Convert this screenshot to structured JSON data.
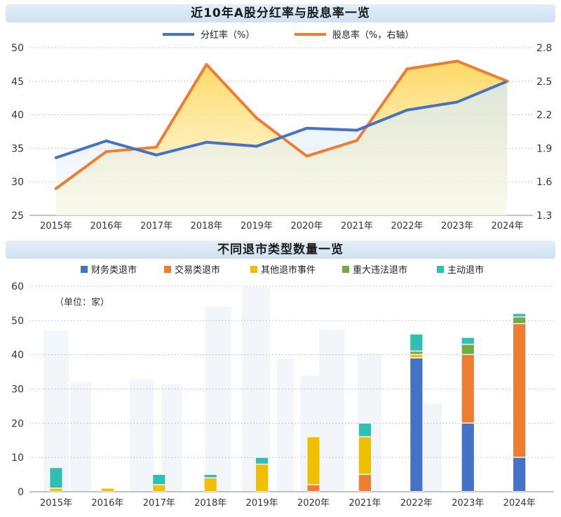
{
  "chart_data": [
    {
      "type": "line",
      "title": "近10年A股分红率与股息率一览",
      "categories": [
        "2015年",
        "2016年",
        "2017年",
        "2018年",
        "2019年",
        "2020年",
        "2021年",
        "2022年",
        "2023年",
        "2024年"
      ],
      "series": [
        {
          "name": "分红率（%）",
          "axis": "left",
          "color": "#4472c4",
          "values": [
            33.6,
            36.1,
            34.0,
            35.9,
            35.3,
            38.0,
            37.7,
            40.7,
            41.9,
            45.0
          ]
        },
        {
          "name": "股息率（%，右轴）",
          "axis": "right",
          "color": "#ed7d31",
          "values": [
            1.54,
            1.87,
            1.91,
            2.65,
            2.17,
            1.83,
            1.97,
            2.61,
            2.68,
            2.5
          ]
        }
      ],
      "ylim": [
        25,
        50
      ],
      "yticks": [
        "25",
        "30",
        "35",
        "40",
        "45",
        "50"
      ],
      "y2lim": [
        1.3,
        2.8
      ],
      "y2ticks": [
        "1.3",
        "1.6",
        "1.9",
        "2.2",
        "2.5",
        "2.8"
      ],
      "legend": "top-center",
      "grid": "horizontal-dotted"
    },
    {
      "type": "bar",
      "stacked": true,
      "title": "不同退市类型数量一览",
      "unit_note": "（单位：家）",
      "categories": [
        "2015年",
        "2016年",
        "2017年",
        "2018年",
        "2019年",
        "2020年",
        "2021年",
        "2022年",
        "2023年",
        "2024年"
      ],
      "series": [
        {
          "name": "财务类退市",
          "color": "#4472c4",
          "values": [
            0,
            0,
            0,
            0,
            0,
            0,
            0,
            39,
            20,
            10
          ]
        },
        {
          "name": "交易类退市",
          "color": "#ed7d31",
          "values": [
            0,
            0,
            0,
            0,
            0,
            2,
            5,
            0,
            20,
            39
          ]
        },
        {
          "name": "其他退市事件",
          "color": "#f0bf00",
          "values": [
            1,
            1,
            2,
            4,
            8,
            14,
            11,
            1,
            0,
            0
          ]
        },
        {
          "name": "重大违法退市",
          "color": "#70ad47",
          "values": [
            0,
            0,
            0,
            0,
            0,
            0,
            0,
            1,
            3,
            2
          ]
        },
        {
          "name": "主动退市",
          "color": "#2fbfb5",
          "values": [
            6,
            0,
            3,
            1,
            2,
            0,
            4,
            5,
            2,
            1
          ]
        }
      ],
      "ylim": [
        0,
        60
      ],
      "yticks": [
        "0",
        "10",
        "20",
        "30",
        "40",
        "50",
        "60"
      ],
      "legend": "top-center",
      "grid": "horizontal-dotted"
    }
  ]
}
